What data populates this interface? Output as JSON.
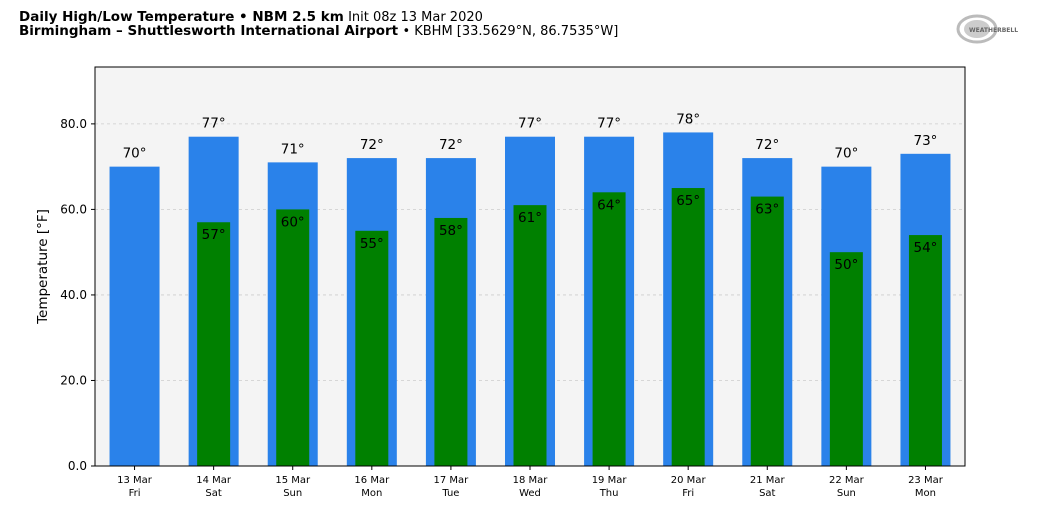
{
  "header": {
    "title_bold": "Daily High/Low Temperature • NBM 2.5 km",
    "title_init": "Init 08z 13 Mar 2020",
    "station_bold": "Birmingham – Shuttlesworth International Airport",
    "station_info": "• KBHM [33.5629°N, 86.7535°W]"
  },
  "logo_text": "WeatherBELL",
  "colors": {
    "high": "#2a82ea",
    "low": "#008000",
    "plot_bg": "#f4f4f4"
  },
  "chart_data": {
    "type": "bar",
    "title": "Daily High/Low Temperature",
    "ylabel": "Temperature [°F]",
    "xlabel": "",
    "ylim": [
      0,
      93.3
    ],
    "yticks": [
      0,
      20,
      40,
      60,
      80
    ],
    "ytick_labels": [
      "0.0",
      "20.0",
      "40.0",
      "60.0",
      "80.0"
    ],
    "grid": true,
    "categories": [
      "13 Mar",
      "14 Mar",
      "15 Mar",
      "16 Mar",
      "17 Mar",
      "18 Mar",
      "19 Mar",
      "20 Mar",
      "21 Mar",
      "22 Mar",
      "23 Mar"
    ],
    "weekdays": [
      "Fri",
      "Sat",
      "Sun",
      "Mon",
      "Tue",
      "Wed",
      "Thu",
      "Fri",
      "Sat",
      "Sun",
      "Mon"
    ],
    "series": [
      {
        "name": "High",
        "values": [
          70,
          77,
          71,
          72,
          72,
          77,
          77,
          78,
          72,
          70,
          73
        ],
        "labels": [
          "70°",
          "77°",
          "71°",
          "72°",
          "72°",
          "77°",
          "77°",
          "78°",
          "72°",
          "70°",
          "73°"
        ]
      },
      {
        "name": "Low",
        "values": [
          null,
          57,
          60,
          55,
          58,
          61,
          64,
          65,
          63,
          50,
          54
        ],
        "labels": [
          null,
          "57°",
          "60°",
          "55°",
          "58°",
          "61°",
          "64°",
          "65°",
          "63°",
          "50°",
          "54°"
        ]
      }
    ]
  }
}
